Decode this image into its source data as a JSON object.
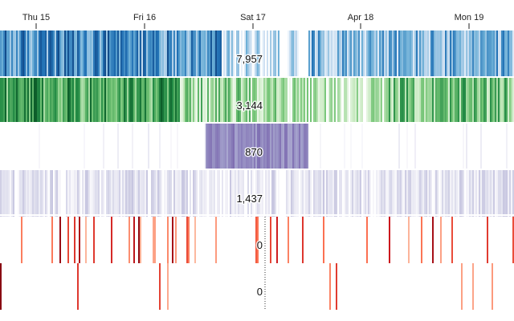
{
  "chart_data": {
    "type": "heatmap",
    "title": "",
    "x_axis": {
      "ticks": [
        {
          "label": "Thu 15"
        },
        {
          "label": "Fri 16"
        },
        {
          "label": "Sat 17"
        },
        {
          "label": "Apr 18"
        },
        {
          "label": "Mon 19"
        }
      ]
    },
    "focus_value_index": 0.5,
    "series": [
      {
        "value_label": "7,957",
        "scheme": [
          "#f7fbff",
          "#c6dbef",
          "#6baed6",
          "#2171b5",
          "#08306b"
        ],
        "baseline": 0.5,
        "noise": 0.32,
        "density": 1.0,
        "segments": [
          {
            "start": 0.0,
            "end": 0.43,
            "level": 0.58
          },
          {
            "start": 0.43,
            "end": 0.6,
            "level": 0.18
          },
          {
            "start": 0.6,
            "end": 1.0,
            "level": 0.42
          }
        ]
      },
      {
        "value_label": "3,144",
        "scheme": [
          "#f7fcf5",
          "#c7e9c0",
          "#74c476",
          "#238b45",
          "#00441b"
        ],
        "baseline": 0.45,
        "noise": 0.3,
        "density": 1.0,
        "segments": [
          {
            "start": 0.0,
            "end": 0.35,
            "level": 0.62
          },
          {
            "start": 0.35,
            "end": 0.55,
            "level": 0.35
          },
          {
            "start": 0.55,
            "end": 0.75,
            "level": 0.22
          },
          {
            "start": 0.75,
            "end": 1.0,
            "level": 0.45
          }
        ]
      },
      {
        "value_label": "870",
        "scheme": [
          "#fcfbfd",
          "#dadaeb",
          "#9e9ac8",
          "#6a51a3",
          "#3f007d"
        ],
        "baseline": 0.03,
        "noise": 0.1,
        "density": 0.1,
        "segments": [
          {
            "start": 0.4,
            "end": 0.6,
            "level": 0.55,
            "density": 1.0
          }
        ]
      },
      {
        "value_label": "1,437",
        "scheme": [
          "#fcfbfd",
          "#dadaeb",
          "#9e9ac8",
          "#6a51a3",
          "#3f007d"
        ],
        "baseline": 0.15,
        "noise": 0.18,
        "density": 1.0,
        "segments": []
      },
      {
        "value_label": "0",
        "scheme": [
          "#fff5f0",
          "#fcbba1",
          "#fb6a4a",
          "#cb181d",
          "#67000d"
        ],
        "baseline": 0.0,
        "noise": 0.35,
        "density": 0.1,
        "segments": []
      },
      {
        "value_label": "0",
        "scheme": [
          "#fff5f0",
          "#fcbba1",
          "#fb6a4a",
          "#cb181d",
          "#67000d"
        ],
        "baseline": 0.0,
        "noise": 0.3,
        "density": 0.03,
        "segments": []
      }
    ]
  }
}
